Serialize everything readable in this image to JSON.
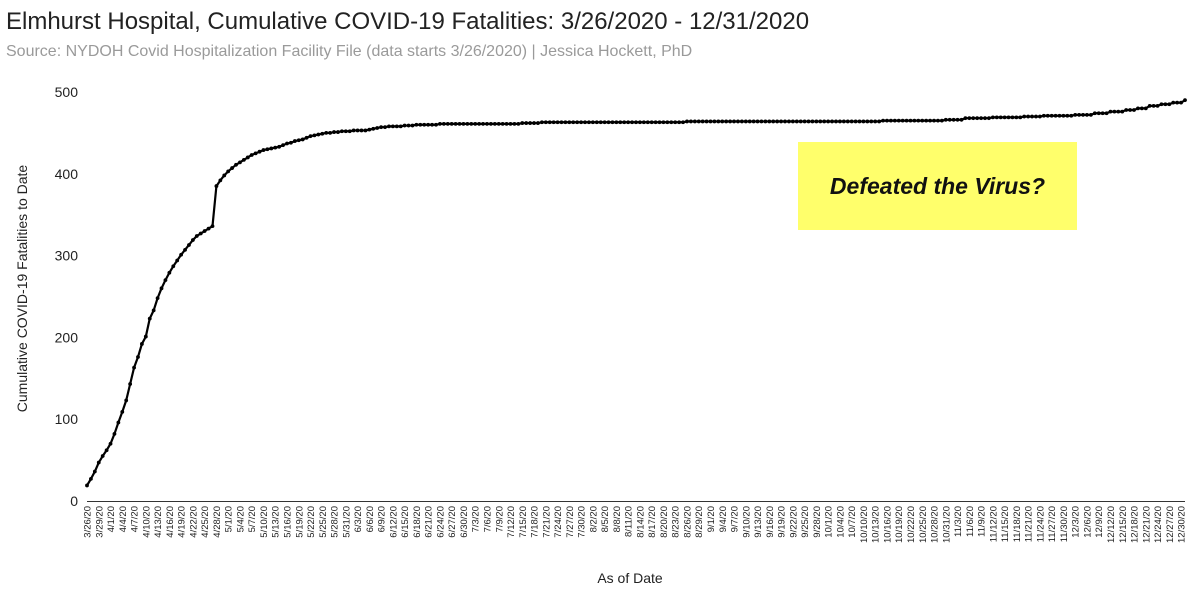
{
  "chart_data": {
    "type": "line",
    "title": "Elmhurst Hospital, Cumulative COVID-19 Fatalities: 3/26/2020 - 12/31/2020",
    "subtitle": "Source: NYDOH Covid Hospitalization Facility File (data starts 3/26/2020) | Jessica Hockett, PhD",
    "xlabel": "As of Date",
    "ylabel": "Cumulative COVID-19 Fatalities to Date",
    "ylim": [
      0,
      500
    ],
    "yticks": [
      0,
      100,
      200,
      300,
      400,
      500
    ],
    "x_start": "2020-03-26",
    "x_end": "2020-12-31",
    "x_tick_labels": [
      "3/26/20",
      "3/29/20",
      "4/1/20",
      "4/4/20",
      "4/7/20",
      "4/10/20",
      "4/13/20",
      "4/16/20",
      "4/19/20",
      "4/22/20",
      "4/25/20",
      "4/28/20",
      "5/1/20",
      "5/4/20",
      "5/7/20",
      "5/10/20",
      "5/13/20",
      "5/16/20",
      "5/19/20",
      "5/22/20",
      "5/25/20",
      "5/28/20",
      "5/31/20",
      "6/3/20",
      "6/6/20",
      "6/9/20",
      "6/12/20",
      "6/15/20",
      "6/18/20",
      "6/21/20",
      "6/24/20",
      "6/27/20",
      "6/30/20",
      "7/3/20",
      "7/6/20",
      "7/9/20",
      "7/12/20",
      "7/15/20",
      "7/18/20",
      "7/21/20",
      "7/24/20",
      "7/27/20",
      "7/30/20",
      "8/2/20",
      "8/5/20",
      "8/8/20",
      "8/11/20",
      "8/14/20",
      "8/17/20",
      "8/20/20",
      "8/23/20",
      "8/26/20",
      "8/29/20",
      "9/1/20",
      "9/4/20",
      "9/7/20",
      "9/10/20",
      "9/13/20",
      "9/16/20",
      "9/19/20",
      "9/22/20",
      "9/25/20",
      "9/28/20",
      "10/1/20",
      "10/4/20",
      "10/7/20",
      "10/10/20",
      "10/13/20",
      "10/16/20",
      "10/19/20",
      "10/22/20",
      "10/25/20",
      "10/28/20",
      "10/31/20",
      "11/3/20",
      "11/6/20",
      "11/9/20",
      "11/12/20",
      "11/15/20",
      "11/18/20",
      "11/21/20",
      "11/24/20",
      "11/27/20",
      "11/30/20",
      "12/3/20",
      "12/6/20",
      "12/9/20",
      "12/12/20",
      "12/15/20",
      "12/18/20",
      "12/21/20",
      "12/24/20",
      "12/27/20",
      "12/30/20"
    ],
    "series": [
      {
        "points": [
          [
            "2020-03-26",
            19
          ],
          [
            "2020-03-27",
            27
          ],
          [
            "2020-03-28",
            36
          ],
          [
            "2020-03-29",
            47
          ],
          [
            "2020-03-30",
            55
          ],
          [
            "2020-03-31",
            62
          ],
          [
            "2020-04-01",
            70
          ],
          [
            "2020-04-02",
            82
          ],
          [
            "2020-04-03",
            96
          ],
          [
            "2020-04-04",
            109
          ],
          [
            "2020-04-05",
            123
          ],
          [
            "2020-04-06",
            143
          ],
          [
            "2020-04-07",
            163
          ],
          [
            "2020-04-08",
            176
          ],
          [
            "2020-04-09",
            192
          ],
          [
            "2020-04-10",
            201
          ],
          [
            "2020-04-11",
            223
          ],
          [
            "2020-04-12",
            233
          ],
          [
            "2020-04-13",
            248
          ],
          [
            "2020-04-14",
            260
          ],
          [
            "2020-04-15",
            270
          ],
          [
            "2020-04-16",
            279
          ],
          [
            "2020-04-17",
            287
          ],
          [
            "2020-04-18",
            294
          ],
          [
            "2020-04-19",
            301
          ],
          [
            "2020-04-20",
            307
          ],
          [
            "2020-04-21",
            313
          ],
          [
            "2020-04-22",
            319
          ],
          [
            "2020-04-23",
            324
          ],
          [
            "2020-04-24",
            327
          ],
          [
            "2020-04-25",
            330
          ],
          [
            "2020-04-26",
            333
          ],
          [
            "2020-04-27",
            336
          ],
          [
            "2020-04-28",
            385
          ],
          [
            "2020-04-29",
            392
          ],
          [
            "2020-04-30",
            398
          ],
          [
            "2020-05-01",
            403
          ],
          [
            "2020-05-02",
            407
          ],
          [
            "2020-05-03",
            411
          ],
          [
            "2020-05-04",
            414
          ],
          [
            "2020-05-05",
            417
          ],
          [
            "2020-05-06",
            420
          ],
          [
            "2020-05-07",
            423
          ],
          [
            "2020-05-08",
            425
          ],
          [
            "2020-05-09",
            427
          ],
          [
            "2020-05-10",
            429
          ],
          [
            "2020-05-11",
            430
          ],
          [
            "2020-05-12",
            431
          ],
          [
            "2020-05-13",
            432
          ],
          [
            "2020-05-14",
            433
          ],
          [
            "2020-05-15",
            435
          ],
          [
            "2020-05-16",
            437
          ],
          [
            "2020-05-17",
            438
          ],
          [
            "2020-05-18",
            440
          ],
          [
            "2020-05-19",
            441
          ],
          [
            "2020-05-20",
            442
          ],
          [
            "2020-05-21",
            444
          ],
          [
            "2020-05-22",
            446
          ],
          [
            "2020-05-23",
            447
          ],
          [
            "2020-05-24",
            448
          ],
          [
            "2020-05-25",
            449
          ],
          [
            "2020-05-26",
            450
          ],
          [
            "2020-05-27",
            450
          ],
          [
            "2020-05-28",
            451
          ],
          [
            "2020-05-29",
            451
          ],
          [
            "2020-05-30",
            452
          ],
          [
            "2020-05-31",
            452
          ],
          [
            "2020-06-01",
            452
          ],
          [
            "2020-06-02",
            453
          ],
          [
            "2020-06-03",
            453
          ],
          [
            "2020-06-04",
            453
          ],
          [
            "2020-06-05",
            453
          ],
          [
            "2020-06-06",
            454
          ],
          [
            "2020-06-07",
            455
          ],
          [
            "2020-06-08",
            456
          ],
          [
            "2020-06-09",
            457
          ],
          [
            "2020-06-10",
            457
          ],
          [
            "2020-06-11",
            458
          ],
          [
            "2020-06-12",
            458
          ],
          [
            "2020-06-13",
            458
          ],
          [
            "2020-06-14",
            458
          ],
          [
            "2020-06-15",
            459
          ],
          [
            "2020-06-16",
            459
          ],
          [
            "2020-06-17",
            459
          ],
          [
            "2020-06-18",
            460
          ],
          [
            "2020-06-19",
            460
          ],
          [
            "2020-06-20",
            460
          ],
          [
            "2020-06-21",
            460
          ],
          [
            "2020-06-22",
            460
          ],
          [
            "2020-06-23",
            460
          ],
          [
            "2020-06-24",
            461
          ],
          [
            "2020-06-25",
            461
          ],
          [
            "2020-06-26",
            461
          ],
          [
            "2020-06-27",
            461
          ],
          [
            "2020-06-28",
            461
          ],
          [
            "2020-07-15",
            462
          ],
          [
            "2020-07-20",
            463
          ],
          [
            "2020-08-26",
            464
          ],
          [
            "2020-10-15",
            465
          ],
          [
            "2020-10-31",
            466
          ],
          [
            "2020-11-05",
            468
          ],
          [
            "2020-11-12",
            469
          ],
          [
            "2020-11-20",
            470
          ],
          [
            "2020-11-25",
            471
          ],
          [
            "2020-12-03",
            472
          ],
          [
            "2020-12-08",
            474
          ],
          [
            "2020-12-12",
            476
          ],
          [
            "2020-12-16",
            478
          ],
          [
            "2020-12-19",
            480
          ],
          [
            "2020-12-22",
            483
          ],
          [
            "2020-12-25",
            485
          ],
          [
            "2020-12-28",
            487
          ],
          [
            "2020-12-31",
            490
          ]
        ]
      }
    ],
    "annotation": {
      "text": "Defeated the Virus?",
      "background": "#ffff6b",
      "text_color": "#111111"
    },
    "colors": {
      "line": "#000000",
      "axis_text": "#222222",
      "subtitle": "#9a9a9a"
    },
    "grid": false
  }
}
